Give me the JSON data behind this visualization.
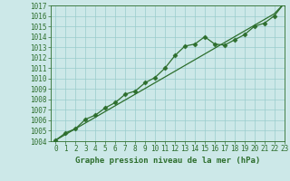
{
  "title": "Graphe pression niveau de la mer (hPa)",
  "x_values": [
    0,
    1,
    2,
    3,
    4,
    5,
    6,
    7,
    8,
    9,
    10,
    11,
    12,
    13,
    14,
    15,
    16,
    17,
    18,
    19,
    20,
    21,
    22,
    23
  ],
  "y_data": [
    1004.1,
    1004.8,
    1005.2,
    1006.1,
    1006.5,
    1007.2,
    1007.7,
    1008.5,
    1008.8,
    1009.6,
    1010.1,
    1011.0,
    1012.2,
    1013.1,
    1013.3,
    1014.0,
    1013.3,
    1013.2,
    1013.7,
    1014.2,
    1015.0,
    1015.3,
    1016.0,
    1017.2
  ],
  "y_trend": [
    1004.1,
    1004.65,
    1005.2,
    1005.75,
    1006.3,
    1006.85,
    1007.4,
    1007.95,
    1008.5,
    1009.05,
    1009.6,
    1010.15,
    1010.7,
    1011.25,
    1011.8,
    1012.35,
    1012.9,
    1013.45,
    1014.0,
    1014.55,
    1015.1,
    1015.65,
    1016.2,
    1017.2
  ],
  "line_color": "#2d6e2d",
  "marker": "D",
  "marker_size": 2.5,
  "bg_color": "#cce8e8",
  "grid_color": "#99cccc",
  "ylim": [
    1004,
    1017
  ],
  "xlim": [
    -0.5,
    23
  ],
  "yticks": [
    1004,
    1005,
    1006,
    1007,
    1008,
    1009,
    1010,
    1011,
    1012,
    1013,
    1014,
    1015,
    1016,
    1017
  ],
  "xticks": [
    0,
    1,
    2,
    3,
    4,
    5,
    6,
    7,
    8,
    9,
    10,
    11,
    12,
    13,
    14,
    15,
    16,
    17,
    18,
    19,
    20,
    21,
    22,
    23
  ],
  "tick_fontsize": 5.5,
  "title_fontsize": 6.5
}
